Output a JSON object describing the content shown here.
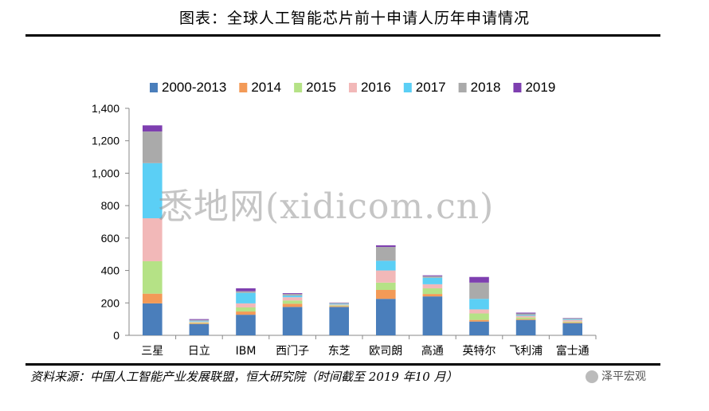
{
  "header": {
    "title": "图表：全球人工智能芯片前十申请人历年申请情况"
  },
  "footer": {
    "source": "资料来源：中国人工智能产业发展联盟，恒大研究院（时间截至 2019 年10 月）"
  },
  "watermark": {
    "text": "悉地网(xidicom.cn)"
  },
  "wechat": {
    "label": "泽平宏观"
  },
  "chart_data": {
    "type": "bar",
    "stacked": true,
    "categories": [
      "三星",
      "日立",
      "IBM",
      "西门子",
      "东芝",
      "欧司朗",
      "高通",
      "英特尔",
      "飞利浦",
      "富士通"
    ],
    "series": [
      {
        "name": "2000-2013",
        "color": "#4A7EBB",
        "values": [
          197,
          70,
          127,
          175,
          175,
          225,
          240,
          85,
          95,
          75
        ]
      },
      {
        "name": "2014",
        "color": "#F39A57",
        "values": [
          60,
          5,
          20,
          20,
          5,
          55,
          15,
          10,
          5,
          5
        ]
      },
      {
        "name": "2015",
        "color": "#B5E286",
        "values": [
          200,
          5,
          25,
          20,
          5,
          45,
          35,
          40,
          10,
          5
        ]
      },
      {
        "name": "2016",
        "color": "#F2B8B8",
        "values": [
          265,
          5,
          25,
          20,
          5,
          75,
          25,
          25,
          10,
          10
        ]
      },
      {
        "name": "2017",
        "color": "#5BCFF5",
        "values": [
          340,
          5,
          65,
          10,
          5,
          60,
          40,
          65,
          5,
          5
        ]
      },
      {
        "name": "2018",
        "color": "#AAAAAA",
        "values": [
          195,
          5,
          10,
          10,
          5,
          85,
          10,
          100,
          10,
          5
        ]
      },
      {
        "name": "2019",
        "color": "#7E3FB0",
        "values": [
          38,
          5,
          18,
          5,
          2,
          10,
          5,
          35,
          5,
          2
        ]
      }
    ],
    "ylim": [
      0,
      1400
    ],
    "yticks": [
      "0",
      "200",
      "400",
      "600",
      "800",
      "1,000",
      "1,200",
      "1,400"
    ],
    "legend": "top",
    "grid": false
  }
}
